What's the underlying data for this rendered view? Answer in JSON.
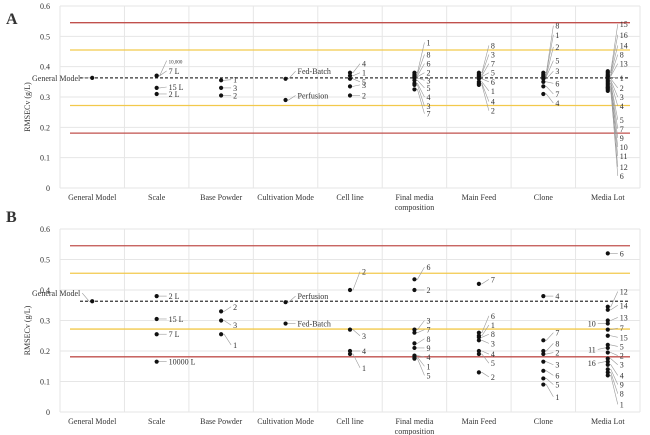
{
  "chart_data": [
    {
      "panel_letter": "A",
      "type": "scatter",
      "ylabel": "RMSECv (g/L)",
      "ylim": [
        0,
        0.6
      ],
      "yticks": [
        "0",
        "0.1",
        "0.2",
        "0.3",
        "0.4",
        "0.5",
        "0.6"
      ],
      "categories": [
        "General Model",
        "Scale",
        "Base Powder",
        "Cultivation Mode",
        "Cell line",
        "Final media\ncomposition",
        "Main Feed",
        "Clone",
        "Media Lot"
      ],
      "reference_lines": [
        {
          "value": 0.545,
          "color": "#c0504d"
        },
        {
          "value": 0.455,
          "color": "#f2c94c"
        },
        {
          "value": 0.272,
          "color": "#f2c94c"
        },
        {
          "value": 0.181,
          "color": "#c0504d"
        },
        {
          "value": 0.363,
          "color": "#333333",
          "style": "dashed"
        }
      ],
      "groups": [
        {
          "category": 0,
          "points": [
            {
              "y": 0.363,
              "label": "General Model",
              "side": "left"
            }
          ]
        },
        {
          "category": 1,
          "points": [
            {
              "y": 0.37,
              "label": "10,000",
              "small": true,
              "ly": 0.42
            },
            {
              "y": 0.37,
              "label": "7 L",
              "ly": 0.386
            },
            {
              "y": 0.33,
              "label": "15 L",
              "ly": 0.333
            },
            {
              "y": 0.31,
              "label": "2 L",
              "ly": 0.31
            }
          ]
        },
        {
          "category": 2,
          "points": [
            {
              "y": 0.355,
              "label": "1",
              "ly": 0.357
            },
            {
              "y": 0.33,
              "label": "3",
              "ly": 0.33
            },
            {
              "y": 0.305,
              "label": "2",
              "ly": 0.305
            }
          ]
        },
        {
          "category": 3,
          "points": [
            {
              "y": 0.36,
              "label": "Fed-Batch",
              "ly": 0.385
            },
            {
              "y": 0.29,
              "label": "Perfusion",
              "ly": 0.305
            }
          ]
        },
        {
          "category": 4,
          "points": [
            {
              "y": 0.38,
              "label": "4",
              "ly": 0.41
            },
            {
              "y": 0.37,
              "label": "1",
              "ly": 0.38
            },
            {
              "y": 0.36,
              "label": "5",
              "ly": 0.35
            },
            {
              "y": 0.335,
              "label": "3",
              "ly": 0.34
            },
            {
              "y": 0.305,
              "label": "2",
              "ly": 0.305
            }
          ]
        },
        {
          "category": 5,
          "points": [
            {
              "y": 0.38,
              "label": "1",
              "ly": 0.48
            },
            {
              "y": 0.375,
              "label": "8",
              "ly": 0.44
            },
            {
              "y": 0.37,
              "label": "6",
              "ly": 0.41
            },
            {
              "y": 0.367,
              "label": "2",
              "ly": 0.38
            },
            {
              "y": 0.363,
              "label": "3",
              "ly": 0.355
            },
            {
              "y": 0.355,
              "label": "5",
              "ly": 0.33
            },
            {
              "y": 0.345,
              "label": "4",
              "ly": 0.3
            },
            {
              "y": 0.34,
              "label": "3",
              "ly": 0.27
            },
            {
              "y": 0.325,
              "label": "7",
              "ly": 0.245
            }
          ]
        },
        {
          "category": 6,
          "points": [
            {
              "y": 0.38,
              "label": "8",
              "ly": 0.47
            },
            {
              "y": 0.375,
              "label": "3",
              "ly": 0.44
            },
            {
              "y": 0.37,
              "label": "7",
              "ly": 0.41
            },
            {
              "y": 0.367,
              "label": "5",
              "ly": 0.38
            },
            {
              "y": 0.36,
              "label": "6",
              "ly": 0.35
            },
            {
              "y": 0.35,
              "label": "1",
              "ly": 0.32
            },
            {
              "y": 0.345,
              "label": "4",
              "ly": 0.285
            },
            {
              "y": 0.34,
              "label": "2",
              "ly": 0.255
            }
          ]
        },
        {
          "category": 7,
          "points": [
            {
              "y": 0.38,
              "label": "8",
              "ly": 0.535
            },
            {
              "y": 0.375,
              "label": "1",
              "ly": 0.505
            },
            {
              "y": 0.37,
              "label": "2",
              "ly": 0.465
            },
            {
              "y": 0.367,
              "label": "5",
              "ly": 0.42
            },
            {
              "y": 0.36,
              "label": "3",
              "ly": 0.385
            },
            {
              "y": 0.35,
              "label": "6",
              "ly": 0.345
            },
            {
              "y": 0.335,
              "label": "7",
              "ly": 0.31
            },
            {
              "y": 0.31,
              "label": "4",
              "ly": 0.28
            }
          ]
        },
        {
          "category": 8,
          "points": [
            {
              "y": 0.385,
              "label": "15",
              "ly": 0.54
            },
            {
              "y": 0.38,
              "label": "16",
              "ly": 0.505
            },
            {
              "y": 0.375,
              "label": "14",
              "ly": 0.47
            },
            {
              "y": 0.37,
              "label": "8",
              "ly": 0.44
            },
            {
              "y": 0.368,
              "label": "13",
              "ly": 0.41
            },
            {
              "y": 0.365,
              "label": "1",
              "ly": 0.363
            },
            {
              "y": 0.36,
              "label": "2",
              "ly": 0.33
            },
            {
              "y": 0.355,
              "label": "3",
              "ly": 0.3
            },
            {
              "y": 0.35,
              "label": "4",
              "ly": 0.27
            },
            {
              "y": 0.345,
              "label": "5",
              "ly": 0.225
            },
            {
              "y": 0.34,
              "label": "7",
              "ly": 0.195
            },
            {
              "y": 0.335,
              "label": "9",
              "ly": 0.165
            },
            {
              "y": 0.33,
              "label": "10",
              "ly": 0.135
            },
            {
              "y": 0.325,
              "label": "11",
              "ly": 0.105
            },
            {
              "y": 0.32,
              "label": "12",
              "ly": 0.07
            },
            {
              "y": 0.33,
              "label": "6",
              "ly": 0.04
            }
          ]
        }
      ]
    },
    {
      "panel_letter": "B",
      "type": "scatter",
      "ylabel": "RMSECv (g/L)",
      "ylim": [
        0,
        0.6
      ],
      "yticks": [
        "0",
        "0.1",
        "0.2",
        "0.3",
        "0.4",
        "0.5",
        "0.6"
      ],
      "categories": [
        "General Model",
        "Scale",
        "Base Powder",
        "Cultivation Mode",
        "Cell line",
        "Final media\ncomposition",
        "Main Feed",
        "Clone",
        "Media Lot"
      ],
      "reference_lines": [
        {
          "value": 0.545,
          "color": "#c0504d"
        },
        {
          "value": 0.455,
          "color": "#f2c94c"
        },
        {
          "value": 0.272,
          "color": "#f2c94c"
        },
        {
          "value": 0.181,
          "color": "#c0504d"
        },
        {
          "value": 0.363,
          "color": "#333333",
          "style": "dashed"
        }
      ],
      "groups": [
        {
          "category": 0,
          "points": [
            {
              "y": 0.363,
              "label": "General Model",
              "side": "left",
              "ly": 0.39
            }
          ]
        },
        {
          "category": 1,
          "points": [
            {
              "y": 0.38,
              "label": "2 L",
              "ly": 0.38
            },
            {
              "y": 0.305,
              "label": "15 L",
              "ly": 0.305
            },
            {
              "y": 0.255,
              "label": "7 L",
              "ly": 0.255
            },
            {
              "y": 0.165,
              "label": "10000 L",
              "ly": 0.165
            }
          ]
        },
        {
          "category": 2,
          "points": [
            {
              "y": 0.33,
              "label": "2",
              "ly": 0.345
            },
            {
              "y": 0.3,
              "label": "3",
              "ly": 0.285
            },
            {
              "y": 0.255,
              "label": "1",
              "ly": 0.22
            }
          ]
        },
        {
          "category": 3,
          "points": [
            {
              "y": 0.36,
              "label": "Perfusion",
              "ly": 0.38
            },
            {
              "y": 0.29,
              "label": "Fed-Batch",
              "ly": 0.29
            }
          ]
        },
        {
          "category": 4,
          "points": [
            {
              "y": 0.4,
              "label": "2",
              "ly": 0.46
            },
            {
              "y": 0.27,
              "label": "3",
              "ly": 0.25
            },
            {
              "y": 0.2,
              "label": "4",
              "ly": 0.2
            },
            {
              "y": 0.19,
              "label": "1",
              "ly": 0.145
            }
          ]
        },
        {
          "category": 5,
          "points": [
            {
              "y": 0.435,
              "label": "6",
              "ly": 0.475
            },
            {
              "y": 0.4,
              "label": "2",
              "ly": 0.4
            },
            {
              "y": 0.27,
              "label": "3",
              "ly": 0.3
            },
            {
              "y": 0.26,
              "label": "7",
              "ly": 0.27
            },
            {
              "y": 0.225,
              "label": "8",
              "ly": 0.24
            },
            {
              "y": 0.21,
              "label": "9",
              "ly": 0.21
            },
            {
              "y": 0.185,
              "label": "4",
              "ly": 0.18
            },
            {
              "y": 0.18,
              "label": "1",
              "ly": 0.15
            },
            {
              "y": 0.175,
              "label": "5",
              "ly": 0.12
            }
          ]
        },
        {
          "category": 6,
          "points": [
            {
              "y": 0.42,
              "label": "7",
              "ly": 0.435
            },
            {
              "y": 0.26,
              "label": "6",
              "ly": 0.315
            },
            {
              "y": 0.25,
              "label": "1",
              "ly": 0.285
            },
            {
              "y": 0.245,
              "label": "8",
              "ly": 0.255
            },
            {
              "y": 0.235,
              "label": "3",
              "ly": 0.225
            },
            {
              "y": 0.2,
              "label": "4",
              "ly": 0.19
            },
            {
              "y": 0.19,
              "label": "5",
              "ly": 0.16
            },
            {
              "y": 0.13,
              "label": "2",
              "ly": 0.115
            }
          ]
        },
        {
          "category": 7,
          "points": [
            {
              "y": 0.38,
              "label": "4",
              "ly": 0.38
            },
            {
              "y": 0.235,
              "label": "7",
              "ly": 0.26
            },
            {
              "y": 0.2,
              "label": "8",
              "ly": 0.225
            },
            {
              "y": 0.19,
              "label": "2",
              "ly": 0.195
            },
            {
              "y": 0.165,
              "label": "3",
              "ly": 0.155
            },
            {
              "y": 0.135,
              "label": "6",
              "ly": 0.12
            },
            {
              "y": 0.11,
              "label": "5",
              "ly": 0.09
            },
            {
              "y": 0.09,
              "label": "1",
              "ly": 0.05
            }
          ]
        },
        {
          "category": 8,
          "points": [
            {
              "y": 0.52,
              "label": "6",
              "ly": 0.52
            },
            {
              "y": 0.345,
              "label": "12",
              "ly": 0.395
            },
            {
              "y": 0.335,
              "label": "14",
              "ly": 0.35
            },
            {
              "y": 0.3,
              "label": "13",
              "ly": 0.31
            },
            {
              "y": 0.29,
              "label": "10",
              "side": "left",
              "ly": 0.29
            },
            {
              "y": 0.27,
              "label": "7",
              "ly": 0.275
            },
            {
              "y": 0.25,
              "label": "15",
              "ly": 0.245
            },
            {
              "y": 0.22,
              "label": "5",
              "ly": 0.215
            },
            {
              "y": 0.21,
              "label": "11",
              "side": "left",
              "ly": 0.205
            },
            {
              "y": 0.195,
              "label": "2",
              "ly": 0.185
            },
            {
              "y": 0.175,
              "label": "3",
              "ly": 0.155
            },
            {
              "y": 0.165,
              "label": "16",
              "side": "left",
              "ly": 0.16
            },
            {
              "y": 0.155,
              "label": "4",
              "ly": 0.12
            },
            {
              "y": 0.14,
              "label": "9",
              "ly": 0.09
            },
            {
              "y": 0.13,
              "label": "8",
              "ly": 0.06
            },
            {
              "y": 0.12,
              "label": "1",
              "ly": 0.025
            }
          ]
        }
      ]
    }
  ]
}
